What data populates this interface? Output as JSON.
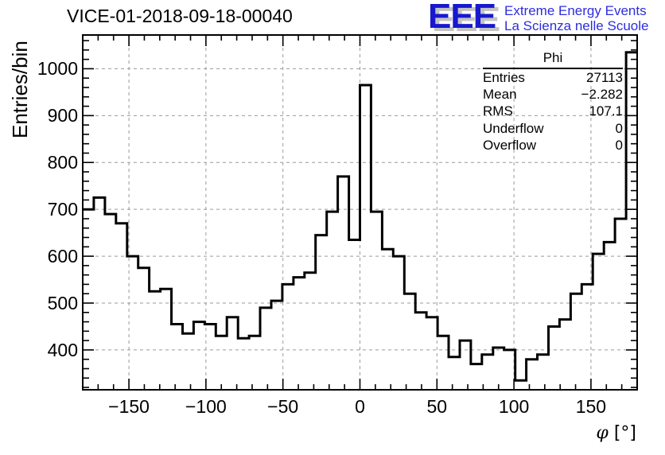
{
  "title": "VICE-01-2018-09-18-00040",
  "logo": {
    "acronym": "EEE",
    "line1": "Extreme Energy Events",
    "line2": "La Scienza nelle Scuole",
    "acronym_color": "#1818cf",
    "text_color": "#2d2de0"
  },
  "stats": {
    "title": "Phi",
    "rows": [
      {
        "label": "Entries",
        "value": "27113"
      },
      {
        "label": "Mean",
        "value": "−2.282"
      },
      {
        "label": "RMS",
        "value": "107.1"
      },
      {
        "label": "Underflow",
        "value": "0"
      },
      {
        "label": "Overflow",
        "value": "0"
      }
    ]
  },
  "chart_data": {
    "type": "bar",
    "subtype": "step-histogram",
    "title": "VICE-01-2018-09-18-00040",
    "xlabel": "φ [°]",
    "ylabel": "Entries/bin",
    "bin_start": -180,
    "bin_width": 7.2,
    "n_bins": 50,
    "values": [
      700,
      725,
      690,
      670,
      600,
      575,
      525,
      530,
      455,
      435,
      460,
      455,
      430,
      470,
      425,
      430,
      490,
      505,
      540,
      555,
      565,
      645,
      695,
      770,
      635,
      965,
      695,
      615,
      600,
      520,
      480,
      470,
      430,
      385,
      420,
      370,
      390,
      405,
      400,
      335,
      380,
      390,
      450,
      465,
      520,
      540,
      605,
      630,
      680,
      1035
    ],
    "xlim": [
      -180,
      180
    ],
    "ylim": [
      315,
      1072
    ],
    "grid": true,
    "line_color": "#000000",
    "grid_color": "#9a9a9a",
    "x_ticks": [
      {
        "v": -150,
        "label": "−150"
      },
      {
        "v": -100,
        "label": "−100"
      },
      {
        "v": -50,
        "label": "−50"
      },
      {
        "v": 0,
        "label": "0"
      },
      {
        "v": 50,
        "label": "50"
      },
      {
        "v": 100,
        "label": "100"
      },
      {
        "v": 150,
        "label": "150"
      }
    ],
    "y_ticks": [
      {
        "v": 400,
        "label": "400"
      },
      {
        "v": 500,
        "label": "500"
      },
      {
        "v": 600,
        "label": "600"
      },
      {
        "v": 700,
        "label": "700"
      },
      {
        "v": 800,
        "label": "800"
      },
      {
        "v": 900,
        "label": "900"
      },
      {
        "v": 1000,
        "label": "1000"
      }
    ],
    "x_minor_step": 10,
    "y_minor_step": 20
  }
}
